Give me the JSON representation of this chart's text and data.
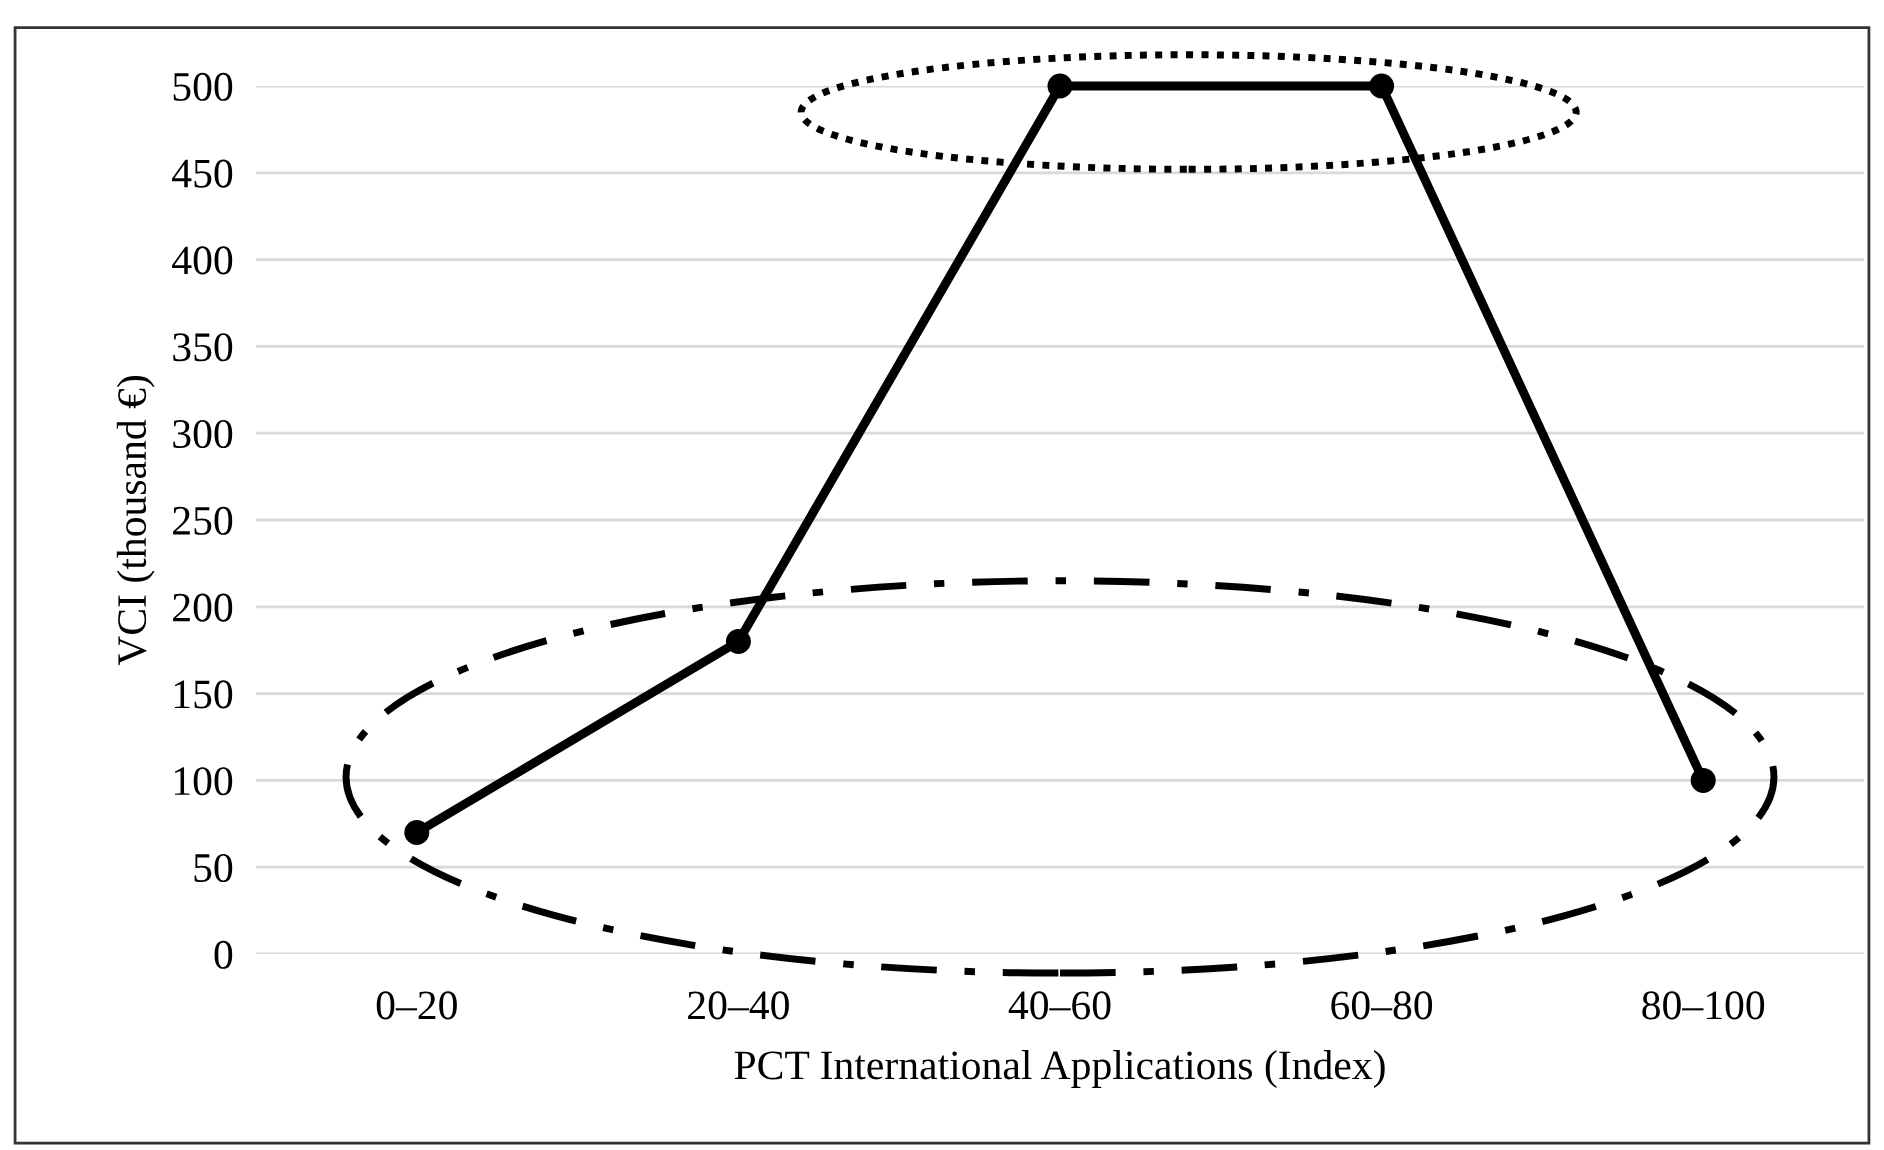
{
  "chart_data": {
    "type": "line",
    "xlabel": "PCT International Applications (Index)",
    "ylabel": "VCI (thousand €)",
    "categories": [
      "0–20",
      "20–40",
      "40–60",
      "60–80",
      "80–100"
    ],
    "series": [
      {
        "color": "#000000",
        "values": [
          70,
          180,
          500,
          500,
          100
        ]
      }
    ],
    "ylim": [
      0,
      500
    ],
    "yticks": [
      0,
      50,
      100,
      150,
      200,
      250,
      300,
      350,
      400,
      450,
      500
    ],
    "grid": "y",
    "marker": "circle",
    "line_style": "solid"
  }
}
